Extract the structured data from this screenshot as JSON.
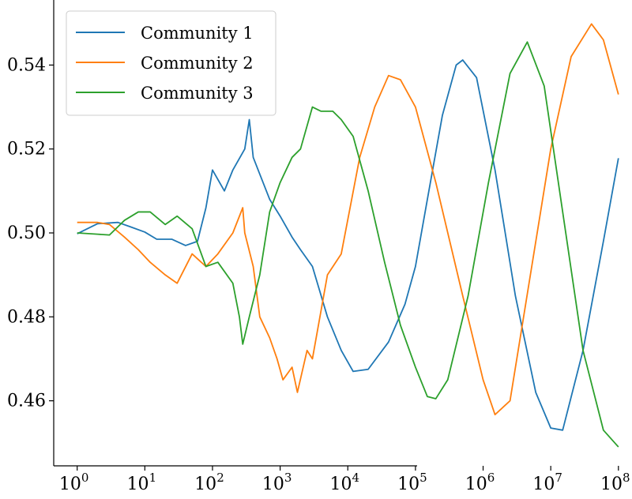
{
  "chart_data": {
    "type": "line",
    "title": "",
    "xlabel": "",
    "ylabel": "",
    "xscale": "log",
    "xlim": [
      0.45,
      115000000.0
    ],
    "ylim": [
      0.4445,
      0.5555
    ],
    "xticks": [
      1,
      10,
      100,
      1000,
      10000,
      100000,
      1000000,
      10000000,
      100000000
    ],
    "xtick_labels": [
      {
        "base": "10",
        "exp": "0"
      },
      {
        "base": "10",
        "exp": "1"
      },
      {
        "base": "10",
        "exp": "2"
      },
      {
        "base": "10",
        "exp": "3"
      },
      {
        "base": "10",
        "exp": "4"
      },
      {
        "base": "10",
        "exp": "5"
      },
      {
        "base": "10",
        "exp": "6"
      },
      {
        "base": "10",
        "exp": "7"
      },
      {
        "base": "10",
        "exp": "8"
      }
    ],
    "yticks": [
      0.46,
      0.48,
      0.5,
      0.52,
      0.54
    ],
    "ytick_labels": [
      "0.46",
      "0.48",
      "0.50",
      "0.52",
      "0.54"
    ],
    "grid": false,
    "legend_position": "upper-left",
    "series": [
      {
        "name": "Community 1",
        "color": "#1f77b4",
        "points": [
          [
            1,
            0.4998
          ],
          [
            2,
            0.5022
          ],
          [
            4,
            0.5025
          ],
          [
            6,
            0.5015
          ],
          [
            10,
            0.5002
          ],
          [
            15,
            0.4985
          ],
          [
            25,
            0.4985
          ],
          [
            40,
            0.497
          ],
          [
            60,
            0.498
          ],
          [
            80,
            0.506
          ],
          [
            100,
            0.515
          ],
          [
            150,
            0.51
          ],
          [
            200,
            0.515
          ],
          [
            300,
            0.52
          ],
          [
            350,
            0.527
          ],
          [
            400,
            0.518
          ],
          [
            500,
            0.514
          ],
          [
            700,
            0.508
          ],
          [
            1000,
            0.504
          ],
          [
            1500,
            0.499
          ],
          [
            2000,
            0.496
          ],
          [
            3000,
            0.492
          ],
          [
            5000,
            0.48
          ],
          [
            8000,
            0.472
          ],
          [
            12000,
            0.467
          ],
          [
            20000,
            0.4675
          ],
          [
            40000,
            0.474
          ],
          [
            70000,
            0.483
          ],
          [
            100000,
            0.492
          ],
          [
            150000,
            0.508
          ],
          [
            250000,
            0.528
          ],
          [
            400000,
            0.54
          ],
          [
            500000,
            0.5412
          ],
          [
            800000,
            0.537
          ],
          [
            1500000,
            0.515
          ],
          [
            3000000,
            0.485
          ],
          [
            6000000,
            0.462
          ],
          [
            10000000,
            0.4535
          ],
          [
            15000000,
            0.453
          ],
          [
            30000000,
            0.472
          ],
          [
            60000000,
            0.498
          ],
          [
            100000000,
            0.5178
          ]
        ]
      },
      {
        "name": "Community 2",
        "color": "#ff7f0e",
        "points": [
          [
            1,
            0.5025
          ],
          [
            2,
            0.5025
          ],
          [
            3,
            0.502
          ],
          [
            5,
            0.499
          ],
          [
            8,
            0.496
          ],
          [
            12,
            0.493
          ],
          [
            20,
            0.49
          ],
          [
            30,
            0.488
          ],
          [
            50,
            0.495
          ],
          [
            80,
            0.492
          ],
          [
            120,
            0.495
          ],
          [
            200,
            0.5
          ],
          [
            280,
            0.506
          ],
          [
            300,
            0.5
          ],
          [
            400,
            0.492
          ],
          [
            500,
            0.48
          ],
          [
            700,
            0.475
          ],
          [
            900,
            0.47
          ],
          [
            1100,
            0.465
          ],
          [
            1500,
            0.468
          ],
          [
            1800,
            0.462
          ],
          [
            2500,
            0.472
          ],
          [
            3000,
            0.47
          ],
          [
            5000,
            0.49
          ],
          [
            8000,
            0.495
          ],
          [
            15000,
            0.518
          ],
          [
            25000,
            0.53
          ],
          [
            40000,
            0.5375
          ],
          [
            60000,
            0.5365
          ],
          [
            100000,
            0.53
          ],
          [
            200000,
            0.512
          ],
          [
            500000,
            0.485
          ],
          [
            1000000,
            0.465
          ],
          [
            1500000,
            0.4567
          ],
          [
            2500000,
            0.46
          ],
          [
            5000000,
            0.49
          ],
          [
            10000000,
            0.52
          ],
          [
            20000000,
            0.542
          ],
          [
            40000000,
            0.5498
          ],
          [
            60000000,
            0.546
          ],
          [
            100000000,
            0.533
          ]
        ]
      },
      {
        "name": "Community 3",
        "color": "#2ca02c",
        "points": [
          [
            1,
            0.5
          ],
          [
            2,
            0.4997
          ],
          [
            3,
            0.4995
          ],
          [
            5,
            0.503
          ],
          [
            8,
            0.505
          ],
          [
            12,
            0.505
          ],
          [
            20,
            0.502
          ],
          [
            30,
            0.504
          ],
          [
            50,
            0.501
          ],
          [
            80,
            0.492
          ],
          [
            120,
            0.493
          ],
          [
            200,
            0.488
          ],
          [
            250,
            0.48
          ],
          [
            280,
            0.4735
          ],
          [
            350,
            0.48
          ],
          [
            500,
            0.49
          ],
          [
            700,
            0.505
          ],
          [
            1000,
            0.512
          ],
          [
            1500,
            0.518
          ],
          [
            2000,
            0.52
          ],
          [
            3000,
            0.53
          ],
          [
            4000,
            0.529
          ],
          [
            6000,
            0.529
          ],
          [
            8000,
            0.527
          ],
          [
            12000,
            0.523
          ],
          [
            20000,
            0.51
          ],
          [
            35000,
            0.493
          ],
          [
            60000,
            0.478
          ],
          [
            100000,
            0.468
          ],
          [
            150000,
            0.461
          ],
          [
            200000,
            0.4605
          ],
          [
            300000,
            0.465
          ],
          [
            600000,
            0.485
          ],
          [
            1200000,
            0.512
          ],
          [
            2500000,
            0.538
          ],
          [
            4500000,
            0.5455
          ],
          [
            8000000,
            0.535
          ],
          [
            15000000,
            0.505
          ],
          [
            30000000,
            0.472
          ],
          [
            60000000,
            0.453
          ],
          [
            100000000,
            0.449
          ]
        ]
      }
    ]
  }
}
